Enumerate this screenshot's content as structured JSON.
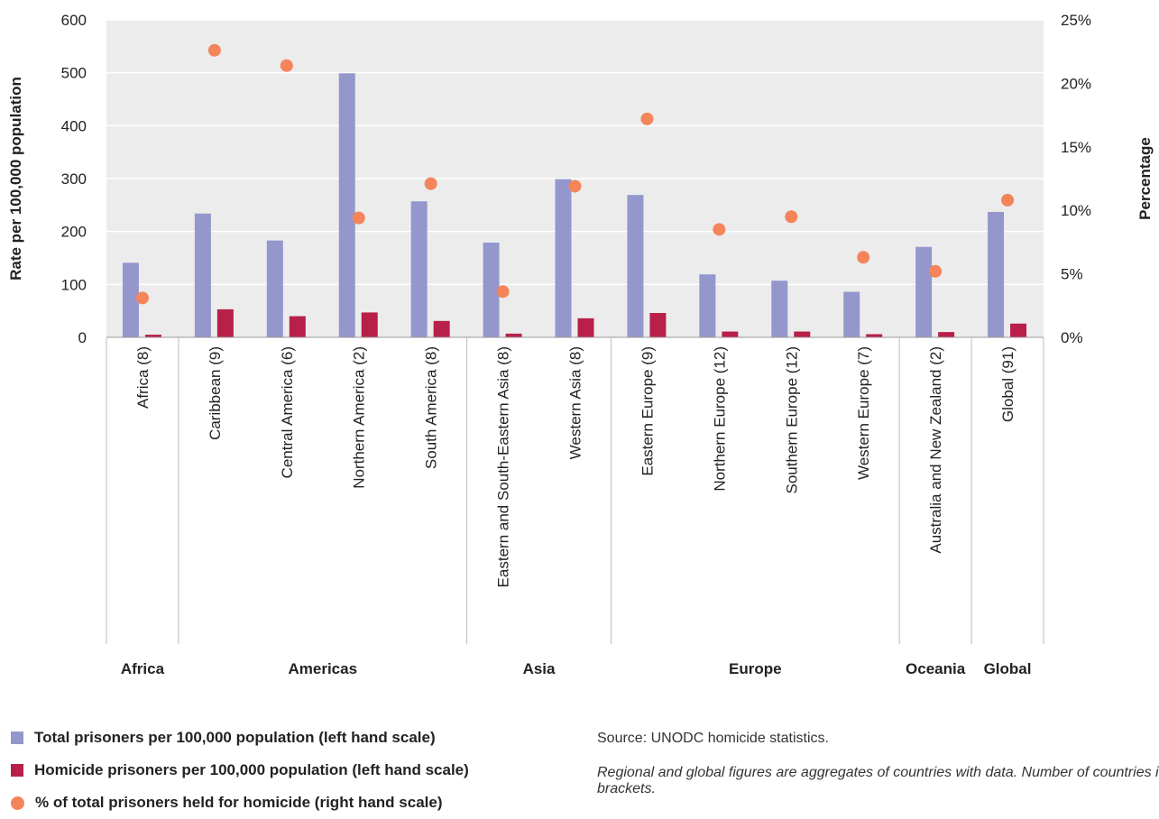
{
  "chart_data": {
    "type": "bar",
    "categories": [
      "Africa (8)",
      "Caribbean (9)",
      "Central America (6)",
      "Northern America (2)",
      "South America (8)",
      "Eastern and South-Eastern Asia (8)",
      "Western Asia (8)",
      "Eastern Europe (9)",
      "Northern Europe (12)",
      "Southern Europe (12)",
      "Western Europe (7)",
      "Australia and New Zealand (2)",
      "Global (91)"
    ],
    "groups": [
      {
        "label": "Africa",
        "count": 1
      },
      {
        "label": "Americas",
        "count": 4
      },
      {
        "label": "Asia",
        "count": 2
      },
      {
        "label": "Europe",
        "count": 4
      },
      {
        "label": "Oceania",
        "count": 1
      },
      {
        "label": "Global",
        "count": 1
      }
    ],
    "series": [
      {
        "name": "Total prisoners per 100,000 population (left hand scale)",
        "axis": "left",
        "kind": "bar",
        "color": "#9497cc",
        "values": [
          141,
          234,
          183,
          499,
          257,
          179,
          299,
          269,
          119,
          107,
          86,
          171,
          237
        ]
      },
      {
        "name": "Homicide prisoners per 100,000 population (left hand scale)",
        "axis": "left",
        "kind": "bar",
        "color": "#b81f49",
        "values": [
          5,
          53,
          40,
          47,
          31,
          7,
          36,
          46,
          11,
          11,
          6,
          10,
          26
        ]
      },
      {
        "name": "% of total prisoners held for homicide (right hand scale)",
        "axis": "right",
        "kind": "dot",
        "color": "#f4845a",
        "values": [
          3.1,
          22.6,
          21.4,
          9.4,
          12.1,
          3.6,
          11.9,
          17.2,
          8.5,
          9.5,
          6.3,
          5.2,
          10.8
        ]
      }
    ],
    "ylabel": "Rate per 100,000 population",
    "y2label": "Percentage",
    "ylim": [
      0,
      600
    ],
    "y_ticks": [
      "0",
      "100",
      "200",
      "300",
      "400",
      "500",
      "600"
    ],
    "y2lim": [
      0,
      25
    ],
    "y2_ticks": [
      "0%",
      "5%",
      "10%",
      "15%",
      "20%",
      "25%"
    ],
    "plot_background": "#ececec",
    "grid": true,
    "legend": "bottom-left"
  },
  "source": "Source: UNODC homicide statistics.",
  "note": "Regional and global figures are aggregates of countries with data. Number of countries in brackets."
}
